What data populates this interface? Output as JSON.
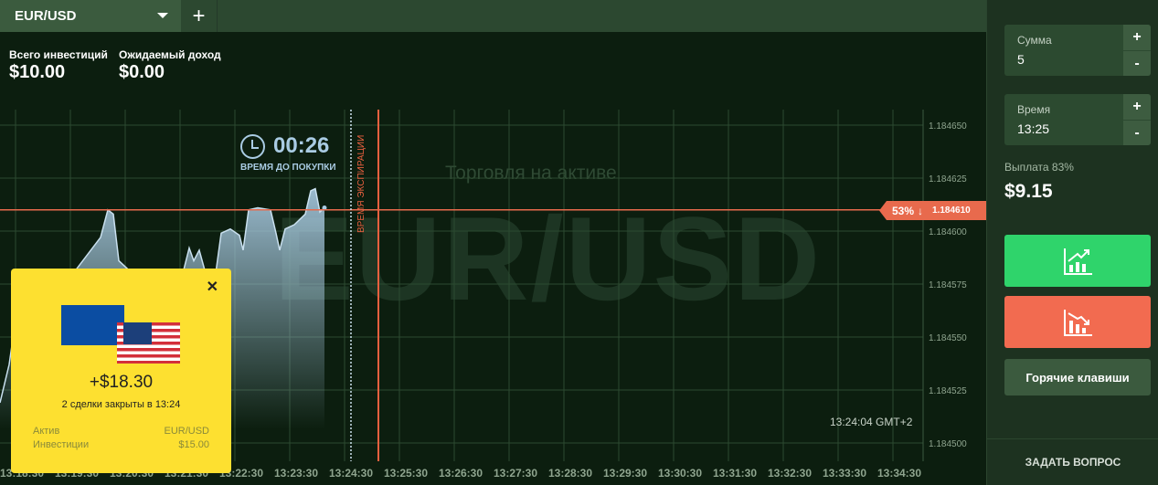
{
  "header": {
    "asset": "EUR/USD",
    "add_icon": "plus-icon"
  },
  "stats": {
    "total_label": "Всего инвестиций",
    "total_value": "$10.00",
    "expected_label": "Ожидаемый доход",
    "expected_value": "$0.00"
  },
  "timer": {
    "value": "00:26",
    "label": "ВРЕМЯ ДО ПОКУПКИ"
  },
  "watermark": {
    "subtitle": "Торговля на активе",
    "asset": "EUR/USD"
  },
  "expiration_label": "ВРЕМЯ ЭКСПИРАЦИИ",
  "price_tag": {
    "percent": "53%",
    "arrow": "↓",
    "price": "1.184610"
  },
  "clock": "13:24:04 GMT+2",
  "popup": {
    "amount": "+$18.30",
    "subtitle": "2 сделки закрыты в 13:24",
    "asset_label": "Актив",
    "asset_value": "EUR/USD",
    "invest_label": "Инвестиции",
    "invest_value": "$15.00"
  },
  "panel": {
    "sum_label": "Сумма",
    "sum_value": "5",
    "time_label": "Время",
    "time_value": "13:25",
    "plus": "+",
    "minus": "-",
    "payout_label": "Выплата 83%",
    "payout_value": "$9.15",
    "hotkeys": "Горячие клавиши",
    "ask": "ЗАДАТЬ ВОПРОС",
    "up_color": "#2fd46b",
    "down_color": "#f26b50"
  },
  "chart_data": {
    "type": "area",
    "y_ticks": [
      "1.184650",
      "1.184625",
      "1.184600",
      "1.184575",
      "1.184550",
      "1.184525",
      "1.184500"
    ],
    "x_ticks": [
      "13:18:30",
      "13:19:30",
      "13:20:30",
      "13:21:30",
      "13:22:30",
      "13:23:30",
      "13:24:30",
      "13:25:30",
      "13:26:30",
      "13:27:30",
      "13:28:30",
      "13:29:30",
      "13:30:30",
      "13:31:30",
      "13:32:30",
      "13:33:30",
      "13:34:30"
    ],
    "ylim": [
      1.184495,
      1.184662
    ],
    "xlim": [
      "13:18:06",
      "13:35:00"
    ],
    "current_price": 1.18461,
    "purchase_deadline": "13:24:30",
    "expiration": "13:25:00",
    "grid": true,
    "points": [
      [
        "13:18:06",
        1.184519
      ],
      [
        "13:18:16",
        1.184537
      ],
      [
        "13:18:26",
        1.184567
      ],
      [
        "13:18:46",
        1.18458
      ],
      [
        "13:19:26",
        1.18458
      ],
      [
        "13:19:56",
        1.184597
      ],
      [
        "13:20:04",
        1.18461
      ],
      [
        "13:20:10",
        1.184608
      ],
      [
        "13:20:16",
        1.184586
      ],
      [
        "13:20:26",
        1.184582
      ],
      [
        "13:20:56",
        1.184571
      ],
      [
        "13:21:26",
        1.18458
      ],
      [
        "13:21:33",
        1.184592
      ],
      [
        "13:21:38",
        1.184586
      ],
      [
        "13:21:44",
        1.184591
      ],
      [
        "13:21:51",
        1.18458
      ],
      [
        "13:22:02",
        1.18458
      ],
      [
        "13:22:08",
        1.184599
      ],
      [
        "13:22:18",
        1.184601
      ],
      [
        "13:22:28",
        1.184598
      ],
      [
        "13:22:32",
        1.184591
      ],
      [
        "13:22:38",
        1.18461
      ],
      [
        "13:22:48",
        1.184611
      ],
      [
        "13:23:02",
        1.18461
      ],
      [
        "13:23:08",
        1.184599
      ],
      [
        "13:23:12",
        1.184591
      ],
      [
        "13:23:18",
        1.184601
      ],
      [
        "13:23:28",
        1.184603
      ],
      [
        "13:23:40",
        1.184608
      ],
      [
        "13:23:46",
        1.184619
      ],
      [
        "13:23:51",
        1.18462
      ],
      [
        "13:23:56",
        1.184609
      ],
      [
        "13:24:01",
        1.184611
      ]
    ]
  }
}
